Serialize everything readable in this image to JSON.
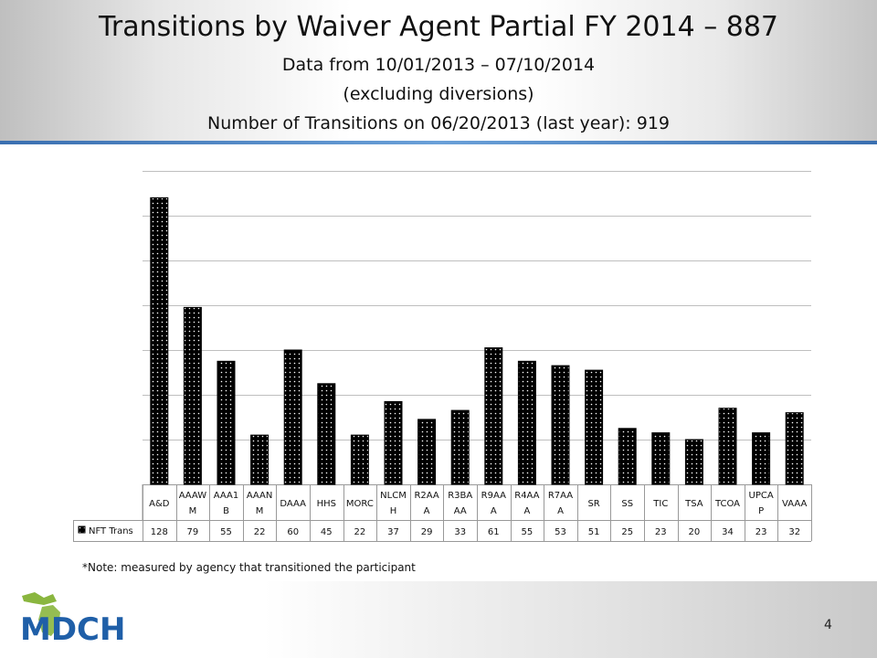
{
  "slide": {
    "title": "Transitions by Waiver Agent Partial FY 2014 – 887",
    "subtitle_1": "Data from 10/01/2013 – 07/10/2014",
    "subtitle_2": "(excluding diversions)",
    "subtitle_3": "Number of Transitions on 06/20/2013 (last year): 919",
    "note": "*Note: measured by agency that transitioned the participant",
    "page_number": "4",
    "logo_text": "MDCH",
    "colors": {
      "header_rule": "#4a7fc0",
      "logo_green": "#8ab63f",
      "logo_blue": "#1f5fa8"
    }
  },
  "chart_data": {
    "type": "bar",
    "categories": [
      "A&D",
      "AAAWM",
      "AAA1B",
      "AAANM",
      "DAAA",
      "HHS",
      "MORC",
      "NLCMH",
      "R2AAA",
      "R3BAAA",
      "R9AAA",
      "R4AAA",
      "R7AAA",
      "SR",
      "SS",
      "TIC",
      "TSA",
      "TCOA",
      "UPCAP",
      "VAAA"
    ],
    "category_labels": [
      [
        "A&D"
      ],
      [
        "AAAW",
        "M"
      ],
      [
        "AAA1",
        "B"
      ],
      [
        "AAAN",
        "M"
      ],
      [
        "DAAA"
      ],
      [
        "HHS"
      ],
      [
        "MORC"
      ],
      [
        "NLCM",
        "H"
      ],
      [
        "R2AA",
        "A"
      ],
      [
        "R3BA",
        "AA"
      ],
      [
        "R9AA",
        "A"
      ],
      [
        "R4AA",
        "A"
      ],
      [
        "R7AA",
        "A"
      ],
      [
        "SR"
      ],
      [
        "SS"
      ],
      [
        "TIC"
      ],
      [
        "TSA"
      ],
      [
        "TCOA"
      ],
      [
        "UPCA",
        "P"
      ],
      [
        "VAAA"
      ]
    ],
    "series": [
      {
        "name": "NFT Trans",
        "values": [
          128,
          79,
          55,
          22,
          60,
          45,
          22,
          37,
          29,
          33,
          61,
          55,
          53,
          51,
          25,
          23,
          20,
          34,
          23,
          32
        ]
      }
    ],
    "ylim": [
      0,
      140
    ],
    "yticks": [
      0,
      20,
      40,
      60,
      80,
      100,
      120,
      140
    ],
    "ytick_labels_visible": false,
    "grid": true,
    "data_table": true,
    "legend": "in data table",
    "bar_color": "#000000",
    "bar_pattern": "white-dots"
  }
}
